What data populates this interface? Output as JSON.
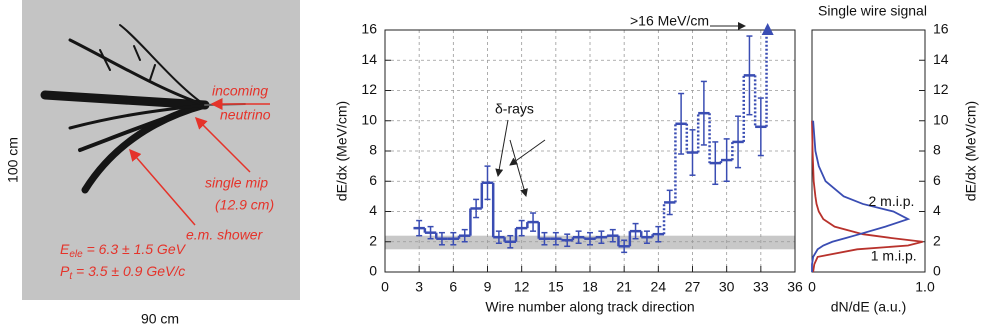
{
  "image": {
    "height_label": "100 cm",
    "width_label": "90 cm",
    "annotations": [
      "incoming",
      "neutrino",
      "single mip",
      "(12.9 cm)",
      "e.m. shower"
    ],
    "energy": [
      "E",
      "ele",
      " = 6.3 ± 1.5 GeV"
    ],
    "momentum": [
      "P",
      "t",
      " = 3.5 ± 0.9 GeV/c"
    ]
  },
  "chart_data": [
    {
      "type": "step",
      "xlabel": "Wire number along track direction",
      "ylabel": "dE/dx (MeV/cm)",
      "x": [
        3,
        4,
        5,
        6,
        7,
        8,
        9,
        10,
        11,
        12,
        13,
        14,
        15,
        16,
        17,
        18,
        19,
        20,
        21,
        22,
        23,
        24,
        25,
        26,
        27,
        28,
        29,
        30,
        31,
        32,
        33
      ],
      "series": [
        {
          "color": "#3a4db3",
          "values": [
            2.9,
            2.6,
            2.2,
            2.2,
            2.4,
            4.2,
            5.9,
            2.3,
            2.0,
            2.9,
            3.3,
            2.2,
            2.2,
            2.1,
            2.3,
            2.2,
            2.3,
            2.4,
            1.7,
            2.7,
            2.3,
            2.5,
            4.6,
            9.8,
            7.9,
            10.5,
            7.2,
            7.4,
            8.6,
            13.0,
            9.6
          ],
          "errors": [
            0.5,
            0.4,
            0.4,
            0.4,
            0.4,
            0.6,
            1.1,
            0.4,
            0.4,
            0.5,
            0.6,
            0.4,
            0.4,
            0.4,
            0.4,
            0.4,
            0.4,
            0.4,
            0.4,
            0.5,
            0.4,
            0.5,
            0.8,
            2.0,
            1.5,
            2.1,
            1.4,
            1.4,
            1.7,
            2.6,
            1.9
          ]
        }
      ],
      "dotted_from_x": 25,
      "overflow": {
        "x": 33.6,
        "value": 16,
        "label": ">16 MeV/cm"
      },
      "band": [
        1.5,
        2.4
      ],
      "annotation": "δ-rays",
      "xlim": [
        0,
        36
      ],
      "xticks": [
        0,
        3,
        6,
        9,
        12,
        15,
        18,
        21,
        24,
        27,
        30,
        33,
        36
      ],
      "ylim": [
        0,
        16
      ],
      "yticks": [
        0,
        2,
        4,
        6,
        8,
        10,
        12,
        14,
        16
      ],
      "grid": true
    },
    {
      "type": "distribution",
      "title": "Single wire signal",
      "xlabel": "dN/dE (a.u.)",
      "ylabel": "dE/dx (MeV/cm)",
      "y": [
        0,
        0.5,
        1,
        1.5,
        1.75,
        2,
        2.25,
        2.5,
        3,
        3.5,
        4,
        4.5,
        5,
        6,
        7,
        8,
        10
      ],
      "series": [
        {
          "name": "1 m.i.p.",
          "color": "#b8322c",
          "values": [
            0.01,
            0.02,
            0.05,
            0.4,
            0.85,
            0.98,
            0.7,
            0.45,
            0.2,
            0.1,
            0.06,
            0.04,
            0.03,
            0.015,
            0.01,
            0.005,
            0
          ]
        },
        {
          "name": "2 m.i.p.",
          "color": "#3a4db3",
          "values": [
            0,
            0,
            0.01,
            0.05,
            0.1,
            0.18,
            0.3,
            0.42,
            0.65,
            0.85,
            0.72,
            0.45,
            0.28,
            0.12,
            0.06,
            0.03,
            0.01
          ]
        }
      ],
      "xlim": [
        0,
        1
      ],
      "xticks": [
        0,
        {
          "value": 1,
          "label": "1.0"
        }
      ],
      "ylim": [
        0,
        16
      ],
      "yticks": [
        0,
        2,
        4,
        6,
        8,
        10,
        12,
        14,
        16
      ]
    }
  ]
}
